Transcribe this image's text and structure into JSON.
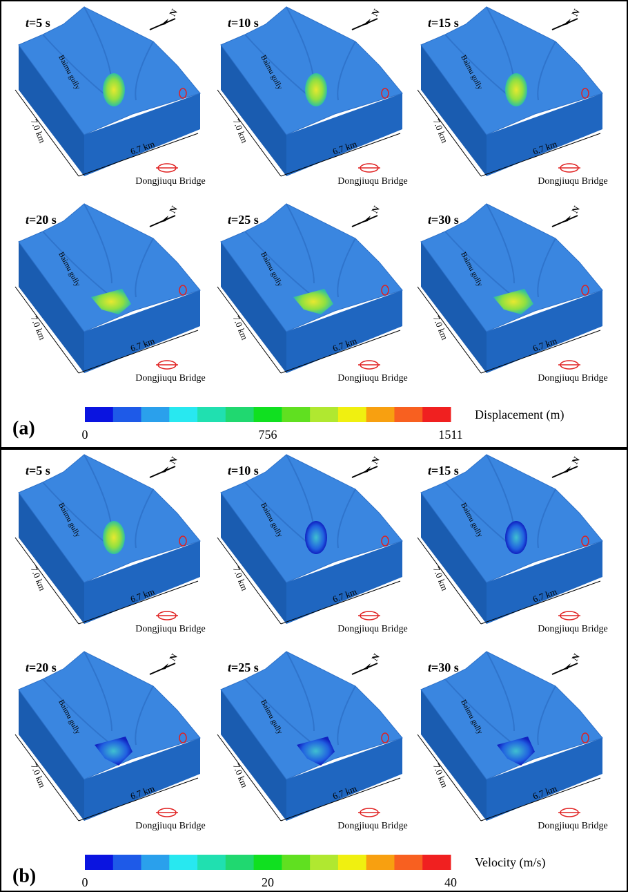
{
  "time_symbol": "t",
  "terrain_labels": {
    "gully": "Baimu gully",
    "width": "7.0 km",
    "length": "6.7 km",
    "bridge": "Dongjiuqu Bridge",
    "north": "N"
  },
  "panels": [
    {
      "label": "(a)",
      "frames": [
        "=5 s",
        "=10 s",
        "=15 s",
        "=20 s",
        "=25 s",
        "=30 s"
      ],
      "colorbar": {
        "title": "Displacement (m)",
        "tick_labels": [
          "0",
          "756",
          "1511"
        ],
        "colors": [
          "#0a14e0",
          "#1e5ae8",
          "#2aa0ec",
          "#28e8f0",
          "#20e0b0",
          "#20d870",
          "#10e020",
          "#60e020",
          "#b0e830",
          "#f0f010",
          "#f8a010",
          "#f86020",
          "#f02020"
        ]
      }
    },
    {
      "label": "(b)",
      "frames": [
        "=5 s",
        "=10 s",
        "=15 s",
        "=20 s",
        "=25 s",
        "=30 s"
      ],
      "colorbar": {
        "title": "Velocity (m/s)",
        "tick_labels": [
          "0",
          "20",
          "40"
        ],
        "colors": [
          "#0a14e0",
          "#1e5ae8",
          "#2aa0ec",
          "#28e8f0",
          "#20e0b0",
          "#20d870",
          "#10e020",
          "#60e020",
          "#b0e830",
          "#f0f010",
          "#f8a010",
          "#f86020",
          "#f02020"
        ]
      }
    }
  ]
}
